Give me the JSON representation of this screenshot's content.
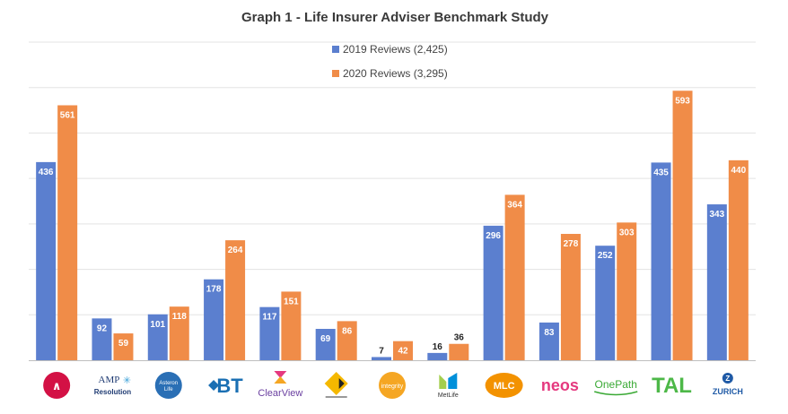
{
  "chart_data": {
    "type": "bar",
    "title": "Graph 1 - Life Insurer Adviser Benchmark Study",
    "categories": [
      "AIA",
      "AMP Resolution",
      "Asteron Life",
      "BT",
      "ClearView",
      "Comminsure",
      "Integrity",
      "MetLife",
      "MLC",
      "NEOS",
      "OnePath",
      "TAL",
      "ZURICH"
    ],
    "series": [
      {
        "name": "2019 Reviews (2,425)",
        "color": "#5b7fcf",
        "values": [
          436,
          92,
          101,
          178,
          117,
          69,
          7,
          16,
          296,
          83,
          252,
          435,
          343
        ]
      },
      {
        "name": "2020 Reviews (3,295)",
        "color": "#f08c48",
        "values": [
          561,
          59,
          118,
          264,
          151,
          86,
          42,
          36,
          364,
          278,
          303,
          593,
          440
        ]
      }
    ],
    "ylim": [
      0,
      700
    ],
    "grid": true,
    "legend": "top-center"
  },
  "logos": [
    {
      "text": "",
      "icon": "aia-logo-icon",
      "color": "#d31145"
    },
    {
      "text": "AMP Resolution",
      "icon": "amp-resolution-logo-icon",
      "color": "#1f3b73"
    },
    {
      "text": "Asteron Life",
      "icon": "asteron-life-logo-icon",
      "color": "#2a6fb5"
    },
    {
      "text": "BT",
      "icon": "bt-logo-icon",
      "color": "#1a6fb3"
    },
    {
      "text": "ClearView",
      "icon": "clearview-logo-icon",
      "color": "#6a3fa0"
    },
    {
      "text": "",
      "icon": "comminsure-logo-icon",
      "color": "#f5b800"
    },
    {
      "text": "integrity",
      "icon": "integrity-logo-icon",
      "color": "#f5a623"
    },
    {
      "text": "MetLife",
      "icon": "metlife-logo-icon",
      "color": "#0090da"
    },
    {
      "text": "MLC",
      "icon": "mlc-logo-icon",
      "color": "#f39200"
    },
    {
      "text": "neos",
      "icon": "neos-logo-icon",
      "color": "#e5397f"
    },
    {
      "text": "OnePath",
      "icon": "onepath-logo-icon",
      "color": "#3aa935"
    },
    {
      "text": "TAL",
      "icon": "tal-logo-icon",
      "color": "#4db848"
    },
    {
      "text": "ZURICH",
      "icon": "zurich-logo-icon",
      "color": "#1f5aa6"
    }
  ]
}
